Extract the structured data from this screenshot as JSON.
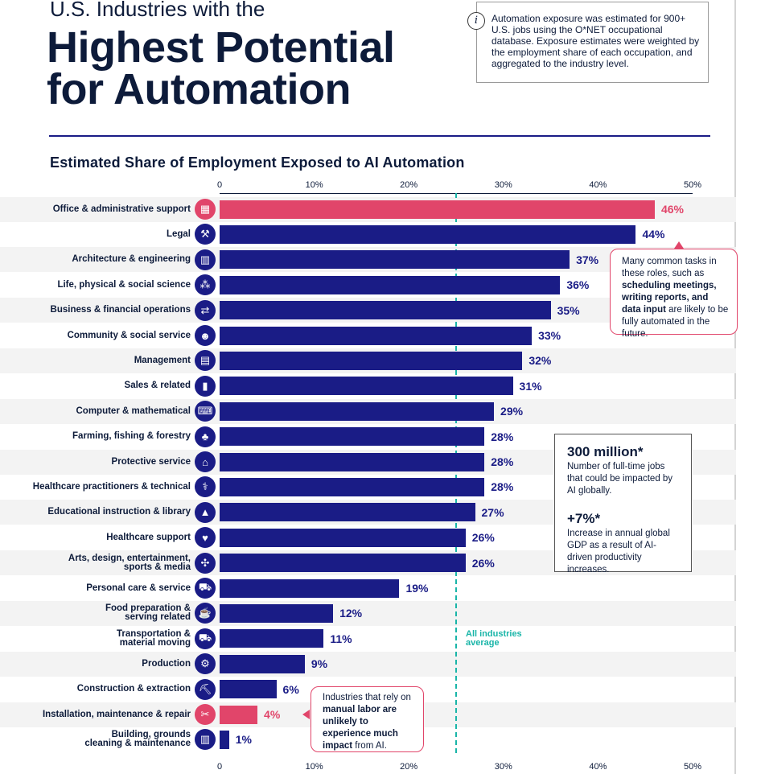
{
  "header": {
    "pre_title": "U.S. Industries with the",
    "main_title_line1": "Highest Potential",
    "main_title_line2": "for Automation"
  },
  "info": {
    "text": "Automation exposure was estimated for 900+ U.S. jobs using the O*NET occupational database. Exposure estimates were weighted by the employment share of each occupation, and aggregated to the industry level."
  },
  "chart_data": {
    "type": "bar",
    "orientation": "horizontal",
    "title": "Estimated Share of Employment Exposed to AI Automation",
    "xlim": [
      0,
      50
    ],
    "ticks": [
      "0",
      "10%",
      "20%",
      "30%",
      "40%",
      "50%"
    ],
    "average_value": 25,
    "average_label": "All industries\naverage",
    "categories": [
      "Office & administrative support",
      "Legal",
      "Architecture & engineering",
      "Life, physical & social science",
      "Business & financial operations",
      "Community & social service",
      "Management",
      "Sales & related",
      "Computer & mathematical",
      "Farming, fishing & forestry",
      "Protective service",
      "Healthcare practitioners & technical",
      "Educational instruction & library",
      "Healthcare support",
      "Arts, design, entertainment,\nsports & media",
      "Personal care & service",
      "Food preparation &\nserving related",
      "Transportation &\nmaterial moving",
      "Production",
      "Construction & extraction",
      "Installation, maintenance & repair",
      "Building, grounds\ncleaning & maintenance"
    ],
    "values": [
      46,
      44,
      37,
      36,
      35,
      33,
      32,
      31,
      29,
      28,
      28,
      28,
      27,
      26,
      26,
      19,
      12,
      11,
      9,
      6,
      4,
      1
    ],
    "value_labels": [
      "46%",
      "44%",
      "37%",
      "36%",
      "35%",
      "33%",
      "32%",
      "31%",
      "29%",
      "28%",
      "28%",
      "28%",
      "27%",
      "26%",
      "26%",
      "19%",
      "12%",
      "11%",
      "9%",
      "6%",
      "4%",
      "1%"
    ],
    "highlighted": [
      true,
      false,
      false,
      false,
      false,
      false,
      false,
      false,
      false,
      false,
      false,
      false,
      false,
      false,
      false,
      false,
      false,
      false,
      false,
      false,
      true,
      false
    ],
    "icons": [
      "office-icon",
      "gavel-icon",
      "building-icon",
      "people-icon",
      "handshake-icon",
      "user-icon",
      "document-icon",
      "sales-chart-icon",
      "computer-icon",
      "tree-icon",
      "lock-icon",
      "stethoscope-icon",
      "graduation-cap-icon",
      "heart-pulse-icon",
      "gamepad-icon",
      "cart-icon",
      "food-icon",
      "truck-icon",
      "factory-icon",
      "excavator-icon",
      "wrench-icon",
      "city-icon"
    ],
    "icon_glyphs": [
      "▦",
      "⚒",
      "▥",
      "⁂",
      "⇄",
      "☻",
      "▤",
      "▮",
      "⌨",
      "♣",
      "⌂",
      "⚕",
      "▲",
      "♥",
      "✣",
      "⛟",
      "☕",
      "⛟",
      "⚙",
      "⛏",
      "✂",
      "▥"
    ],
    "colors": {
      "primary": "#1a1c86",
      "highlight": "#e1456a",
      "average": "#19b5a8",
      "stripe": "#f3f3f3"
    }
  },
  "callout_high": {
    "t1": "Many common tasks in these roles, such as ",
    "b1": "scheduling meetings, writing reports, and data input",
    "t2": " are likely to be fully automated in the future."
  },
  "callout_low": {
    "t1": "Industries that rely on ",
    "b1": "manual labor are unlikely to experience much impact",
    "t2": " from AI."
  },
  "stats": {
    "stat1_value": "300 million*",
    "stat1_desc": "Number of full-time jobs that could be impacted by AI globally.",
    "stat2_value": "+7%*",
    "stat2_desc": "Increase in annual global GDP as a result of AI-driven productivity increases."
  }
}
